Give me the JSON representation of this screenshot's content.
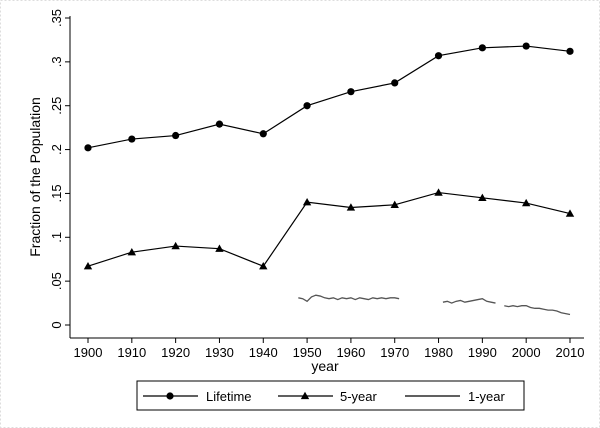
{
  "chart_data": {
    "type": "line",
    "title": "",
    "xlabel": "year",
    "ylabel": "Fraction of the Population",
    "xlim": [
      1900,
      2010
    ],
    "ylim": [
      0,
      0.35
    ],
    "xticks": [
      1900,
      1910,
      1920,
      1930,
      1940,
      1950,
      1960,
      1970,
      1980,
      1990,
      2000,
      2010
    ],
    "yticks": [
      0,
      0.05,
      0.1,
      0.15,
      0.2,
      0.25,
      0.3,
      0.35
    ],
    "ytick_labels": [
      "0",
      ".05",
      ".1",
      ".15",
      ".2",
      ".25",
      ".3",
      ".35"
    ],
    "grid": false,
    "legend_position": "bottom",
    "series": [
      {
        "name": "Lifetime",
        "marker": "circle",
        "x": [
          1900,
          1910,
          1920,
          1930,
          1940,
          1950,
          1960,
          1970,
          1980,
          1990,
          2000,
          2010
        ],
        "y": [
          0.202,
          0.212,
          0.216,
          0.229,
          0.218,
          0.25,
          0.266,
          0.276,
          0.307,
          0.316,
          0.318,
          0.312
        ]
      },
      {
        "name": "5-year",
        "marker": "triangle",
        "x": [
          1900,
          1910,
          1920,
          1930,
          1940,
          1950,
          1960,
          1970,
          1980,
          1990,
          2000,
          2010
        ],
        "y": [
          0.067,
          0.083,
          0.09,
          0.087,
          0.067,
          0.14,
          0.134,
          0.137,
          0.151,
          0.145,
          0.139,
          0.127
        ]
      },
      {
        "name": "1-year",
        "marker": "none",
        "segments": [
          {
            "x": [
              1948,
              1949,
              1950,
              1951,
              1952,
              1953,
              1954,
              1955,
              1956,
              1957,
              1958,
              1959,
              1960,
              1961,
              1962,
              1963,
              1964,
              1965,
              1966,
              1967,
              1968,
              1969,
              1970,
              1971
            ],
            "y": [
              0.031,
              0.03,
              0.027,
              0.032,
              0.034,
              0.033,
              0.031,
              0.03,
              0.031,
              0.029,
              0.031,
              0.03,
              0.031,
              0.029,
              0.031,
              0.03,
              0.029,
              0.031,
              0.03,
              0.031,
              0.03,
              0.031,
              0.031,
              0.03
            ]
          },
          {
            "x": [
              1981,
              1982,
              1983,
              1984,
              1985,
              1986,
              1987,
              1988,
              1989,
              1990,
              1991,
              1992,
              1993
            ],
            "y": [
              0.026,
              0.027,
              0.025,
              0.027,
              0.028,
              0.026,
              0.027,
              0.028,
              0.029,
              0.03,
              0.027,
              0.026,
              0.025
            ]
          },
          {
            "x": [
              1995,
              1996,
              1997,
              1998,
              1999,
              2000,
              2001,
              2002,
              2003,
              2004,
              2005,
              2006,
              2007,
              2008,
              2009,
              2010
            ],
            "y": [
              0.022,
              0.021,
              0.022,
              0.021,
              0.022,
              0.022,
              0.02,
              0.019,
              0.019,
              0.018,
              0.017,
              0.017,
              0.016,
              0.014,
              0.013,
              0.012
            ]
          }
        ]
      }
    ]
  },
  "colors": {
    "line": "#000000",
    "one_year_line": "#555555",
    "background": "#ffffff",
    "legend_border": "#000000",
    "frame_border": "#dddddd"
  }
}
